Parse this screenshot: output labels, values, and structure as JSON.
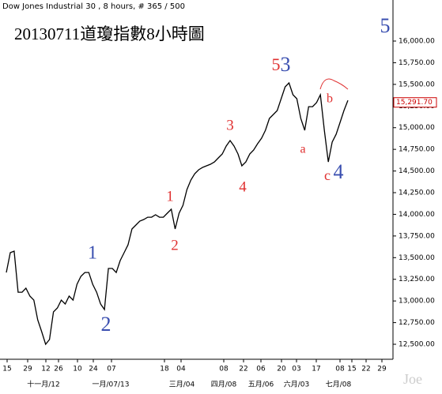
{
  "chart_data": {
    "type": "line",
    "header": "Dow Jones Industrial 30 , 8 hours, # 365 / 500",
    "title": "20130711道瓊指數8小時圖",
    "watermark": "Joe",
    "series": [
      {
        "name": "Dow Jones Industrial 30",
        "color": "#000000",
        "values": [
          13329,
          13557,
          13575,
          13101,
          13101,
          13147,
          13056,
          13010,
          12782,
          12646,
          12500,
          12555,
          12874,
          12919,
          13010,
          12965,
          13056,
          13010,
          13193,
          13284,
          13329,
          13329,
          13193,
          13101,
          12965,
          12901,
          13375,
          13375,
          13329,
          13466,
          13557,
          13648,
          13831,
          13876,
          13922,
          13940,
          13967,
          13967,
          13995,
          13967,
          13967,
          14013,
          14059,
          13831,
          14013,
          14104,
          14286,
          14396,
          14469,
          14514,
          14542,
          14560,
          14578,
          14605,
          14651,
          14697,
          14788,
          14852,
          14788,
          14697,
          14560,
          14605,
          14697,
          14742,
          14815,
          14879,
          14970,
          15107,
          15152,
          15198,
          15335,
          15471,
          15517,
          15380,
          15335,
          15107,
          14970,
          15243,
          15243,
          15289,
          15380,
          14970,
          14605,
          14833,
          14924,
          15061,
          15198,
          15316
        ]
      }
    ],
    "last_price": {
      "value": 15291.7,
      "label": "15,291.70",
      "color": "#cc0000"
    },
    "ylim": [
      12327,
      16474
    ],
    "yticks": [
      {
        "value": 12500,
        "label": "12,500.00"
      },
      {
        "value": 12750,
        "label": "12,750.00"
      },
      {
        "value": 13000,
        "label": "13,000.00"
      },
      {
        "value": 13250,
        "label": "13,250.00"
      },
      {
        "value": 13500,
        "label": "13,500.00"
      },
      {
        "value": 13750,
        "label": "13,750.00"
      },
      {
        "value": 14000,
        "label": "14,000.00"
      },
      {
        "value": 14250,
        "label": "14,250.00"
      },
      {
        "value": 14500,
        "label": "14,500.00"
      },
      {
        "value": 14750,
        "label": "14,750.00"
      },
      {
        "value": 15000,
        "label": "15,000.00"
      },
      {
        "value": 15250,
        "label": "15,250.00"
      },
      {
        "value": 15500,
        "label": "15,500.00"
      },
      {
        "value": 15750,
        "label": "15,750.00"
      },
      {
        "value": 16000,
        "label": "16,000.00"
      }
    ],
    "x_tick_labels": [
      "15",
      "29",
      "12",
      "26",
      "10",
      "24",
      "07",
      "18",
      "04",
      "08",
      "22",
      "06",
      "20",
      "03",
      "17",
      "08",
      "15",
      "22",
      "29"
    ],
    "x_month_labels": [
      "十一月/12",
      "一月/07/13",
      "三月/04",
      "四月/08",
      "五月/06",
      "六月/03",
      "七月/08"
    ],
    "annotations": [
      {
        "text": "5",
        "color": "#3a4fb0"
      },
      {
        "text": "5",
        "color": "#e03030"
      },
      {
        "text": "3",
        "color": "#3a4fb0"
      },
      {
        "text": "b",
        "color": "#e03030"
      },
      {
        "text": "a",
        "color": "#e03030"
      },
      {
        "text": "c",
        "color": "#e03030"
      },
      {
        "text": "4",
        "color": "#3a4fb0"
      },
      {
        "text": "3",
        "color": "#e03030"
      },
      {
        "text": "4",
        "color": "#e03030"
      },
      {
        "text": "1",
        "color": "#e03030"
      },
      {
        "text": "2",
        "color": "#e03030"
      },
      {
        "text": "1",
        "color": "#3a4fb0"
      },
      {
        "text": "2",
        "color": "#3a4fb0"
      }
    ]
  }
}
